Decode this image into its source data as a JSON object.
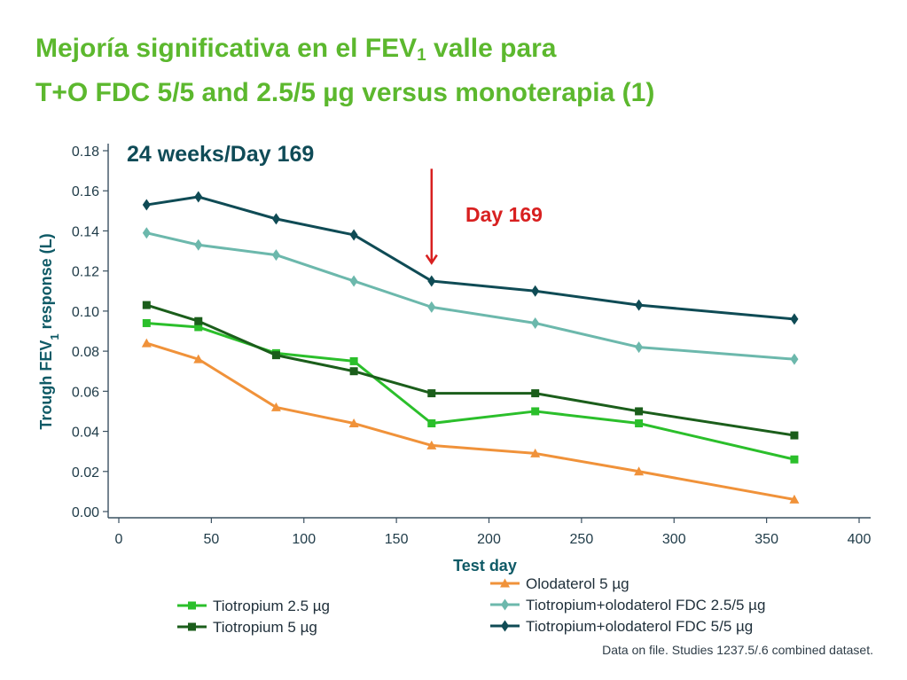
{
  "title": {
    "line1_before": "Mejoría significativa en el FEV",
    "line1_sub": "1",
    "line1_after": " valle para",
    "line2": "T+O FDC 5/5 and 2.5/5 µg versus monoterapia (1)"
  },
  "footnote": "Data on file. Studies 1237.5/.6 combined dataset.",
  "colors": {
    "title": "#5cb82e",
    "annotation": "#d82020",
    "axis": "#3a5060"
  },
  "chart_data": {
    "type": "line",
    "subtitle": "24 weeks/Day 169",
    "xlabel": "Test day",
    "ylabel_before": "Trough FEV",
    "ylabel_sub": "1",
    "ylabel_after": " response (L)",
    "xlim": [
      0,
      400
    ],
    "ylim": [
      0,
      0.18
    ],
    "xticks": [
      0,
      50,
      100,
      150,
      200,
      250,
      300,
      350,
      400
    ],
    "yticks": [
      "0.00",
      "0.02",
      "0.04",
      "0.06",
      "0.08",
      "0.10",
      "0.12",
      "0.14",
      "0.16",
      "0.18"
    ],
    "grid": false,
    "annotation": {
      "text": "Day 169",
      "x": 169,
      "arrow_from": 0.171,
      "arrow_to": 0.124
    },
    "x": [
      15,
      43,
      85,
      127,
      169,
      225,
      281,
      365
    ],
    "series": [
      {
        "name": "Olodaterol 5 µg",
        "color": "#f0923a",
        "marker": "triangle",
        "values": [
          0.084,
          0.076,
          0.052,
          0.044,
          0.033,
          0.029,
          0.02,
          0.006
        ]
      },
      {
        "name": "Tiotropium+olodaterol FDC 2.5/5 µg",
        "color": "#6cb8ac",
        "marker": "diamond",
        "values": [
          0.139,
          0.133,
          0.128,
          0.115,
          0.102,
          0.094,
          0.082,
          0.076
        ]
      },
      {
        "name": "Tiotropium+olodaterol FDC 5/5 µg",
        "color": "#0f4b55",
        "marker": "diamond",
        "values": [
          0.153,
          0.157,
          0.146,
          0.138,
          0.115,
          0.11,
          0.103,
          0.096
        ]
      },
      {
        "name": "Tiotropium 2.5 µg",
        "color": "#2bbf2b",
        "marker": "square",
        "values": [
          0.094,
          0.092,
          0.079,
          0.075,
          0.044,
          0.05,
          0.044,
          0.026
        ]
      },
      {
        "name": "Tiotropium 5 µg",
        "color": "#1b5e1b",
        "marker": "square",
        "values": [
          0.103,
          0.095,
          0.078,
          0.07,
          0.059,
          0.059,
          0.05,
          0.038
        ]
      }
    ],
    "legend": {
      "left": [
        "Tiotropium 2.5 µg",
        "Tiotropium 5 µg"
      ],
      "right": [
        "Olodaterol 5 µg",
        "Tiotropium+olodaterol FDC 2.5/5 µg",
        "Tiotropium+olodaterol FDC 5/5 µg"
      ]
    }
  }
}
